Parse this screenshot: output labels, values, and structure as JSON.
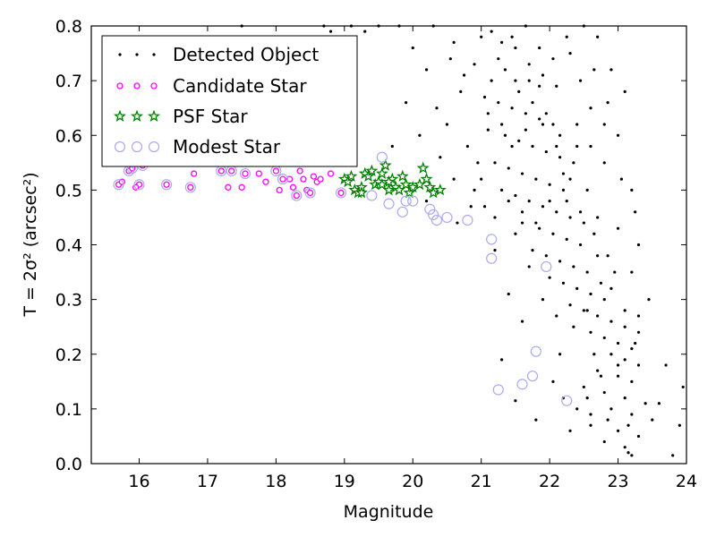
{
  "chart_data": {
    "type": "scatter",
    "xlabel": "Magnitude",
    "ylabel": "T = 2σ² (arcsec²)",
    "xlim": [
      15.3,
      24.0
    ],
    "ylim": [
      0.0,
      0.8
    ],
    "xticks": [
      "16",
      "17",
      "18",
      "19",
      "20",
      "21",
      "22",
      "23",
      "24"
    ],
    "yticks": [
      "0.0",
      "0.1",
      "0.2",
      "0.3",
      "0.4",
      "0.5",
      "0.6",
      "0.7",
      "0.8"
    ],
    "grid": false,
    "legend_position": "top-left",
    "series": [
      {
        "name": "Detected Object",
        "marker": "dot",
        "color": "#000000",
        "points": [
          [
            21.15,
            0.79
          ],
          [
            21.3,
            0.77
          ],
          [
            21.5,
            0.76
          ],
          [
            21.7,
            0.73
          ],
          [
            21.9,
            0.71
          ],
          [
            22.1,
            0.69
          ],
          [
            21.05,
            0.67
          ],
          [
            21.25,
            0.66
          ],
          [
            21.45,
            0.65
          ],
          [
            21.65,
            0.64
          ],
          [
            21.85,
            0.63
          ],
          [
            22.05,
            0.62
          ],
          [
            21.1,
            0.61
          ],
          [
            21.35,
            0.6
          ],
          [
            21.55,
            0.59
          ],
          [
            21.75,
            0.58
          ],
          [
            21.95,
            0.57
          ],
          [
            22.15,
            0.56
          ],
          [
            21.2,
            0.55
          ],
          [
            21.4,
            0.54
          ],
          [
            21.6,
            0.53
          ],
          [
            21.8,
            0.52
          ],
          [
            22.0,
            0.51
          ],
          [
            22.2,
            0.5
          ],
          [
            21.5,
            0.49
          ],
          [
            21.7,
            0.48
          ],
          [
            21.9,
            0.47
          ],
          [
            22.1,
            0.46
          ],
          [
            22.3,
            0.45
          ],
          [
            21.6,
            0.44
          ],
          [
            21.85,
            0.43
          ],
          [
            22.05,
            0.42
          ],
          [
            22.25,
            0.41
          ],
          [
            22.45,
            0.4
          ],
          [
            21.75,
            0.39
          ],
          [
            21.95,
            0.38
          ],
          [
            22.15,
            0.37
          ],
          [
            22.35,
            0.36
          ],
          [
            22.55,
            0.35
          ],
          [
            22.0,
            0.34
          ],
          [
            22.2,
            0.33
          ],
          [
            22.4,
            0.32
          ],
          [
            22.6,
            0.31
          ],
          [
            22.8,
            0.3
          ],
          [
            22.3,
            0.29
          ],
          [
            22.5,
            0.28
          ],
          [
            22.7,
            0.27
          ],
          [
            22.9,
            0.26
          ],
          [
            23.1,
            0.25
          ],
          [
            22.6,
            0.24
          ],
          [
            22.8,
            0.23
          ],
          [
            23.0,
            0.22
          ],
          [
            23.2,
            0.21
          ],
          [
            22.9,
            0.2
          ],
          [
            23.1,
            0.19
          ],
          [
            23.3,
            0.18
          ],
          [
            22.7,
            0.17
          ],
          [
            23.0,
            0.16
          ],
          [
            23.2,
            0.15
          ],
          [
            22.5,
            0.14
          ],
          [
            22.8,
            0.13
          ],
          [
            23.1,
            0.12
          ],
          [
            23.4,
            0.11
          ],
          [
            22.9,
            0.1
          ],
          [
            23.2,
            0.09
          ],
          [
            23.5,
            0.08
          ],
          [
            22.6,
            0.07
          ],
          [
            23.0,
            0.06
          ],
          [
            23.3,
            0.05
          ],
          [
            22.8,
            0.04
          ],
          [
            23.1,
            0.03
          ],
          [
            23.15,
            0.02
          ],
          [
            23.2,
            0.015
          ],
          [
            23.8,
            0.015
          ],
          [
            23.9,
            0.07
          ],
          [
            23.95,
            0.14
          ],
          [
            23.6,
            0.11
          ],
          [
            23.7,
            0.18
          ],
          [
            23.3,
            0.4
          ],
          [
            23.2,
            0.5
          ],
          [
            23.0,
            0.6
          ],
          [
            22.9,
            0.72
          ],
          [
            23.1,
            0.68
          ],
          [
            22.7,
            0.78
          ],
          [
            22.5,
            0.8
          ],
          [
            22.3,
            0.75
          ],
          [
            22.6,
            0.65
          ],
          [
            22.4,
            0.58
          ],
          [
            22.8,
            0.55
          ],
          [
            22.7,
            0.45
          ],
          [
            23.0,
            0.43
          ],
          [
            23.2,
            0.35
          ],
          [
            23.3,
            0.27
          ],
          [
            23.25,
            0.22
          ],
          [
            21.4,
            0.31
          ],
          [
            21.6,
            0.26
          ],
          [
            21.3,
            0.19
          ],
          [
            21.5,
            0.115
          ],
          [
            21.8,
            0.08
          ],
          [
            21.2,
            0.39
          ],
          [
            20.5,
            0.62
          ],
          [
            20.7,
            0.68
          ],
          [
            20.9,
            0.73
          ],
          [
            20.6,
            0.77
          ],
          [
            20.3,
            0.8
          ],
          [
            20.8,
            0.58
          ],
          [
            20.4,
            0.56
          ],
          [
            20.6,
            0.52
          ],
          [
            20.9,
            0.5
          ],
          [
            20.2,
            0.48
          ],
          [
            19.8,
            0.8
          ],
          [
            20.0,
            0.76
          ],
          [
            20.2,
            0.72
          ],
          [
            19.9,
            0.66
          ],
          [
            20.1,
            0.6
          ],
          [
            19.7,
            0.58
          ],
          [
            20.35,
            0.65
          ],
          [
            20.75,
            0.71
          ],
          [
            21.0,
            0.78
          ],
          [
            20.55,
            0.74
          ],
          [
            19.5,
            0.8
          ],
          [
            19.3,
            0.79
          ],
          [
            19.1,
            0.8
          ],
          [
            18.7,
            0.8
          ],
          [
            18.8,
            0.79
          ],
          [
            17.5,
            0.8
          ],
          [
            20.95,
            0.55
          ],
          [
            21.05,
            0.47
          ],
          [
            21.15,
            0.7
          ],
          [
            21.35,
            0.72
          ],
          [
            21.55,
            0.68
          ],
          [
            21.75,
            0.66
          ],
          [
            21.95,
            0.64
          ],
          [
            22.15,
            0.6
          ],
          [
            22.35,
            0.55
          ],
          [
            22.55,
            0.5
          ],
          [
            22.25,
            0.48
          ],
          [
            22.45,
            0.46
          ],
          [
            22.65,
            0.42
          ],
          [
            22.85,
            0.38
          ],
          [
            22.95,
            0.35
          ],
          [
            22.75,
            0.33
          ],
          [
            22.55,
            0.28
          ],
          [
            22.35,
            0.25
          ],
          [
            22.15,
            0.2
          ],
          [
            22.05,
            0.15
          ],
          [
            22.2,
            0.12
          ],
          [
            22.4,
            0.1
          ],
          [
            22.6,
            0.09
          ],
          [
            22.3,
            0.06
          ],
          [
            21.3,
            0.5
          ],
          [
            21.5,
            0.42
          ],
          [
            21.7,
            0.36
          ],
          [
            21.9,
            0.3
          ],
          [
            22.1,
            0.27
          ],
          [
            21.45,
            0.58
          ],
          [
            21.65,
            0.61
          ],
          [
            21.85,
            0.69
          ],
          [
            22.05,
            0.74
          ],
          [
            22.25,
            0.78
          ],
          [
            21.25,
            0.74
          ],
          [
            21.45,
            0.78
          ],
          [
            21.65,
            0.8
          ],
          [
            21.85,
            0.76
          ],
          [
            22.45,
            0.7
          ],
          [
            22.65,
            0.72
          ],
          [
            22.85,
            0.66
          ],
          [
            23.05,
            0.52
          ],
          [
            23.25,
            0.46
          ],
          [
            23.45,
            0.3
          ],
          [
            20.65,
            0.44
          ],
          [
            20.85,
            0.47
          ],
          [
            21.0,
            0.52
          ],
          [
            21.2,
            0.45
          ],
          [
            21.4,
            0.48
          ],
          [
            21.6,
            0.46
          ],
          [
            21.8,
            0.44
          ],
          [
            22.0,
            0.48
          ],
          [
            22.2,
            0.53
          ],
          [
            22.4,
            0.62
          ],
          [
            22.6,
            0.58
          ],
          [
            22.8,
            0.62
          ],
          [
            21.1,
            0.64
          ],
          [
            21.3,
            0.62
          ],
          [
            21.5,
            0.7
          ],
          [
            21.7,
            0.7
          ],
          [
            21.9,
            0.62
          ],
          [
            22.1,
            0.58
          ],
          [
            22.3,
            0.52
          ],
          [
            22.5,
            0.44
          ],
          [
            22.7,
            0.38
          ],
          [
            22.9,
            0.32
          ],
          [
            23.1,
            0.28
          ],
          [
            23.3,
            0.24
          ],
          [
            23.0,
            0.18
          ],
          [
            22.75,
            0.16
          ],
          [
            22.55,
            0.12
          ],
          [
            22.65,
            0.2
          ],
          [
            22.85,
            0.08
          ],
          [
            23.15,
            0.07
          ]
        ]
      },
      {
        "name": "Candidate Star",
        "marker": "circle",
        "color": "#ff00ff",
        "points": [
          [
            15.7,
            0.51
          ],
          [
            15.75,
            0.515
          ],
          [
            15.85,
            0.535
          ],
          [
            15.9,
            0.54
          ],
          [
            16.0,
            0.51
          ],
          [
            16.05,
            0.545
          ],
          [
            15.95,
            0.505
          ],
          [
            16.4,
            0.51
          ],
          [
            16.5,
            0.55
          ],
          [
            16.75,
            0.505
          ],
          [
            16.8,
            0.53
          ],
          [
            17.2,
            0.535
          ],
          [
            17.3,
            0.505
          ],
          [
            17.35,
            0.535
          ],
          [
            17.5,
            0.505
          ],
          [
            17.55,
            0.53
          ],
          [
            17.75,
            0.53
          ],
          [
            17.85,
            0.515
          ],
          [
            18.0,
            0.535
          ],
          [
            18.05,
            0.5
          ],
          [
            18.1,
            0.52
          ],
          [
            18.2,
            0.52
          ],
          [
            18.25,
            0.505
          ],
          [
            18.3,
            0.49
          ],
          [
            18.35,
            0.535
          ],
          [
            18.4,
            0.52
          ],
          [
            18.45,
            0.5
          ],
          [
            18.5,
            0.495
          ],
          [
            18.55,
            0.525
          ],
          [
            18.6,
            0.515
          ],
          [
            18.65,
            0.52
          ],
          [
            18.8,
            0.53
          ],
          [
            18.95,
            0.495
          ]
        ]
      },
      {
        "name": "PSF Star",
        "marker": "star",
        "color": "#008000",
        "points": [
          [
            19.0,
            0.52
          ],
          [
            19.05,
            0.515
          ],
          [
            19.1,
            0.525
          ],
          [
            19.15,
            0.5
          ],
          [
            19.2,
            0.495
          ],
          [
            19.25,
            0.505
          ],
          [
            19.3,
            0.53
          ],
          [
            19.35,
            0.525
          ],
          [
            19.4,
            0.535
          ],
          [
            19.45,
            0.51
          ],
          [
            19.5,
            0.515
          ],
          [
            19.55,
            0.53
          ],
          [
            19.6,
            0.545
          ],
          [
            19.65,
            0.5
          ],
          [
            19.7,
            0.52
          ],
          [
            19.75,
            0.505
          ],
          [
            19.8,
            0.5
          ],
          [
            19.85,
            0.525
          ],
          [
            19.9,
            0.51
          ],
          [
            19.95,
            0.495
          ],
          [
            20.0,
            0.505
          ],
          [
            20.1,
            0.51
          ],
          [
            20.15,
            0.54
          ],
          [
            20.2,
            0.52
          ],
          [
            20.25,
            0.505
          ],
          [
            20.3,
            0.495
          ],
          [
            20.4,
            0.5
          ],
          [
            19.25,
            0.495
          ],
          [
            19.55,
            0.51
          ],
          [
            19.65,
            0.515
          ]
        ]
      },
      {
        "name": "Modest Star",
        "marker": "open-circle",
        "color": "#aaaaee",
        "points": [
          [
            15.7,
            0.51
          ],
          [
            15.85,
            0.535
          ],
          [
            15.9,
            0.54
          ],
          [
            16.0,
            0.51
          ],
          [
            16.05,
            0.545
          ],
          [
            16.4,
            0.51
          ],
          [
            16.75,
            0.505
          ],
          [
            17.2,
            0.535
          ],
          [
            17.35,
            0.535
          ],
          [
            17.55,
            0.53
          ],
          [
            18.0,
            0.535
          ],
          [
            18.1,
            0.52
          ],
          [
            18.3,
            0.49
          ],
          [
            18.5,
            0.495
          ],
          [
            18.95,
            0.495
          ],
          [
            19.4,
            0.49
          ],
          [
            19.55,
            0.56
          ],
          [
            19.65,
            0.475
          ],
          [
            19.85,
            0.46
          ],
          [
            20.0,
            0.48
          ],
          [
            20.25,
            0.465
          ],
          [
            20.35,
            0.445
          ],
          [
            20.5,
            0.45
          ],
          [
            20.8,
            0.445
          ],
          [
            21.15,
            0.41
          ],
          [
            21.15,
            0.375
          ],
          [
            21.25,
            0.135
          ],
          [
            21.6,
            0.145
          ],
          [
            21.75,
            0.16
          ],
          [
            21.8,
            0.205
          ],
          [
            21.95,
            0.36
          ],
          [
            22.25,
            0.115
          ],
          [
            20.3,
            0.455
          ],
          [
            19.9,
            0.48
          ]
        ]
      }
    ]
  }
}
